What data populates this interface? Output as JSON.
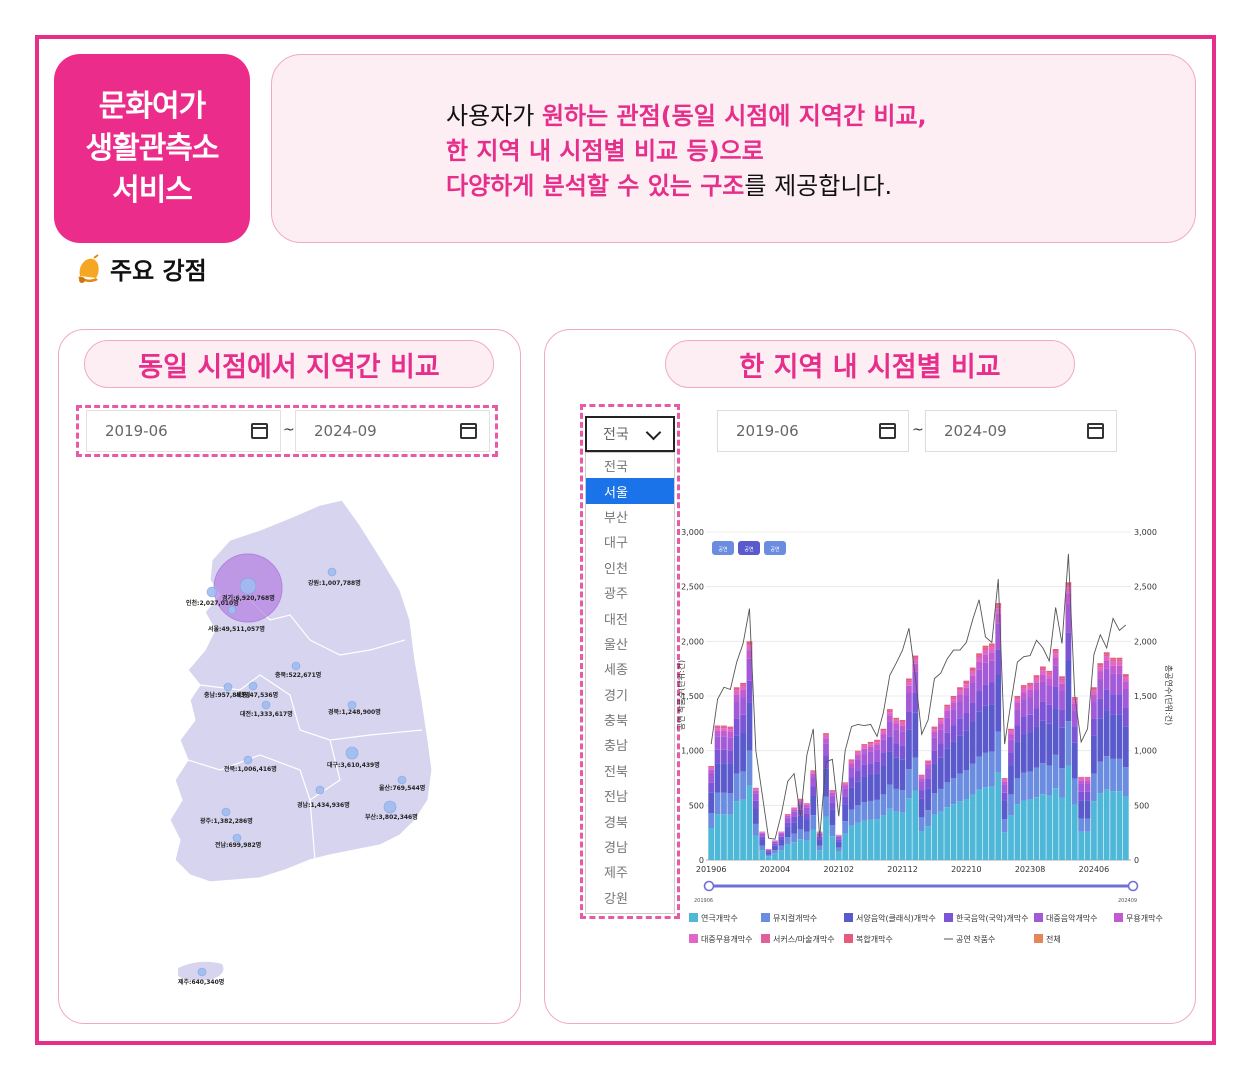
{
  "badge": {
    "lines": [
      "문화여가",
      "생활관측소",
      "서비스"
    ]
  },
  "intro": {
    "l1_plain": "사용자가 ",
    "l1_hl": "원하는 관점(동일 시점에 지역간 비교,",
    "l2_hl": "한 지역 내 시점별 비교 등)으로",
    "l3_hl": "다양하게 분석할 수 있는 구조",
    "l3_plain": "를 제공합니다."
  },
  "strength": {
    "label": "주요 강점",
    "icon": "bell-icon"
  },
  "left_panel": {
    "title": "동일 시점에서 지역간 비교",
    "date_from": "2019-06",
    "date_to": "2024-09",
    "tilde": "~",
    "map_labels": [
      {
        "text": "강원:1,007,788명"
      },
      {
        "text": "경기:6,920,768명"
      },
      {
        "text": "인천:2,027,010명"
      },
      {
        "text": "서울:49,511,057명"
      },
      {
        "text": "충북:522,671명"
      },
      {
        "text": "충남:957,883명"
      },
      {
        "text": "세종:47,536명"
      },
      {
        "text": "대전:1,333,617명"
      },
      {
        "text": "경북:1,248,900명"
      },
      {
        "text": "전북:1,006,416명"
      },
      {
        "text": "대구:3,610,439명"
      },
      {
        "text": "울산:769,544명"
      },
      {
        "text": "경남:1,434,936명"
      },
      {
        "text": "부산:3,802,346명"
      },
      {
        "text": "광주:1,382,286명"
      },
      {
        "text": "전남:699,982명"
      },
      {
        "text": "제주:640,340명"
      }
    ]
  },
  "right_panel": {
    "title": "한 지역 내 시점별 비교",
    "select_value": "전국",
    "options": [
      "전국",
      "서울",
      "부산",
      "대구",
      "인천",
      "광주",
      "대전",
      "울산",
      "세종",
      "경기",
      "충북",
      "충남",
      "전북",
      "전남",
      "경북",
      "경남",
      "제주",
      "강원"
    ],
    "selected_option": "서울",
    "date_from": "2019-06",
    "date_to": "2024-09",
    "tilde": "~"
  },
  "chart_data": {
    "type": "bar",
    "stacked": true,
    "yticks": [
      "0",
      "500",
      "1,000",
      "1,500",
      "2,000",
      "2,500",
      "3,000"
    ],
    "y2ticks": [
      "0",
      "500",
      "1,000",
      "1,500",
      "2,000",
      "2,500",
      "3,000"
    ],
    "ylim": [
      0,
      3000
    ],
    "xticks": [
      "201906",
      "202004",
      "202102",
      "202112",
      "202210",
      "202308",
      "202406"
    ],
    "ylabel": "공연 작품수(단위:건)",
    "y2label": "총공연수(단위:건)",
    "slider_from": "201906",
    "slider_to": "202409",
    "toggle_buttons": [
      "공연",
      "공연",
      "공연"
    ],
    "totals": [
      860,
      1230,
      1230,
      1220,
      1580,
      1620,
      2000,
      660,
      260,
      100,
      180,
      260,
      420,
      480,
      560,
      520,
      820,
      260,
      1160,
      640,
      230,
      710,
      920,
      1000,
      1060,
      1080,
      1100,
      1200,
      1380,
      1300,
      1280,
      1660,
      1870,
      780,
      910,
      1220,
      1300,
      1420,
      1500,
      1580,
      1640,
      1760,
      1890,
      1960,
      1980,
      2350,
      750,
      1200,
      1500,
      1600,
      1620,
      1690,
      1770,
      1730,
      1930,
      1680,
      2540,
      1490,
      760,
      760,
      1580,
      1800,
      1900,
      1850,
      1850,
      1700
    ],
    "line": [
      1060,
      1470,
      1580,
      1560,
      1810,
      1980,
      2300,
      1000,
      600,
      200,
      190,
      420,
      720,
      790,
      400,
      960,
      1200,
      200,
      900,
      920,
      400,
      1000,
      1220,
      1240,
      1230,
      1240,
      1130,
      1350,
      1690,
      1800,
      1920,
      2120,
      1680,
      1150,
      1280,
      1660,
      1710,
      1840,
      1920,
      1920,
      1990,
      2200,
      2380,
      2040,
      1990,
      2570,
      1060,
      1440,
      1810,
      1860,
      1870,
      2010,
      1940,
      1820,
      2310,
      1980,
      2800,
      1500,
      1080,
      1200,
      1880,
      2060,
      1940,
      2210,
      2100,
      2150
    ],
    "series": [
      {
        "name": "연극개막수",
        "color": "#4fb8d9",
        "share": 0.34
      },
      {
        "name": "뮤지컬개막수",
        "color": "#6a8de0",
        "share": 0.16
      },
      {
        "name": "서양음악(클래식)개막수",
        "color": "#5a5acc",
        "share": 0.22
      },
      {
        "name": "한국음악(국악)개막수",
        "color": "#7b55d6",
        "share": 0.1
      },
      {
        "name": "대중음악개막수",
        "color": "#a25ad9",
        "share": 0.1
      },
      {
        "name": "무용개막수",
        "color": "#c25ad0",
        "share": 0.04
      },
      {
        "name": "대중무용개막수",
        "color": "#e066c8",
        "share": 0.02
      },
      {
        "name": "서커스/마술개막수",
        "color": "#e0609a",
        "share": 0.01
      },
      {
        "name": "복합개막수",
        "color": "#e85a7c",
        "share": 0.01
      },
      {
        "name": "공연 작품수",
        "color": "#555555",
        "kind": "line"
      },
      {
        "name": "전체",
        "color": "#e6855a"
      }
    ]
  }
}
